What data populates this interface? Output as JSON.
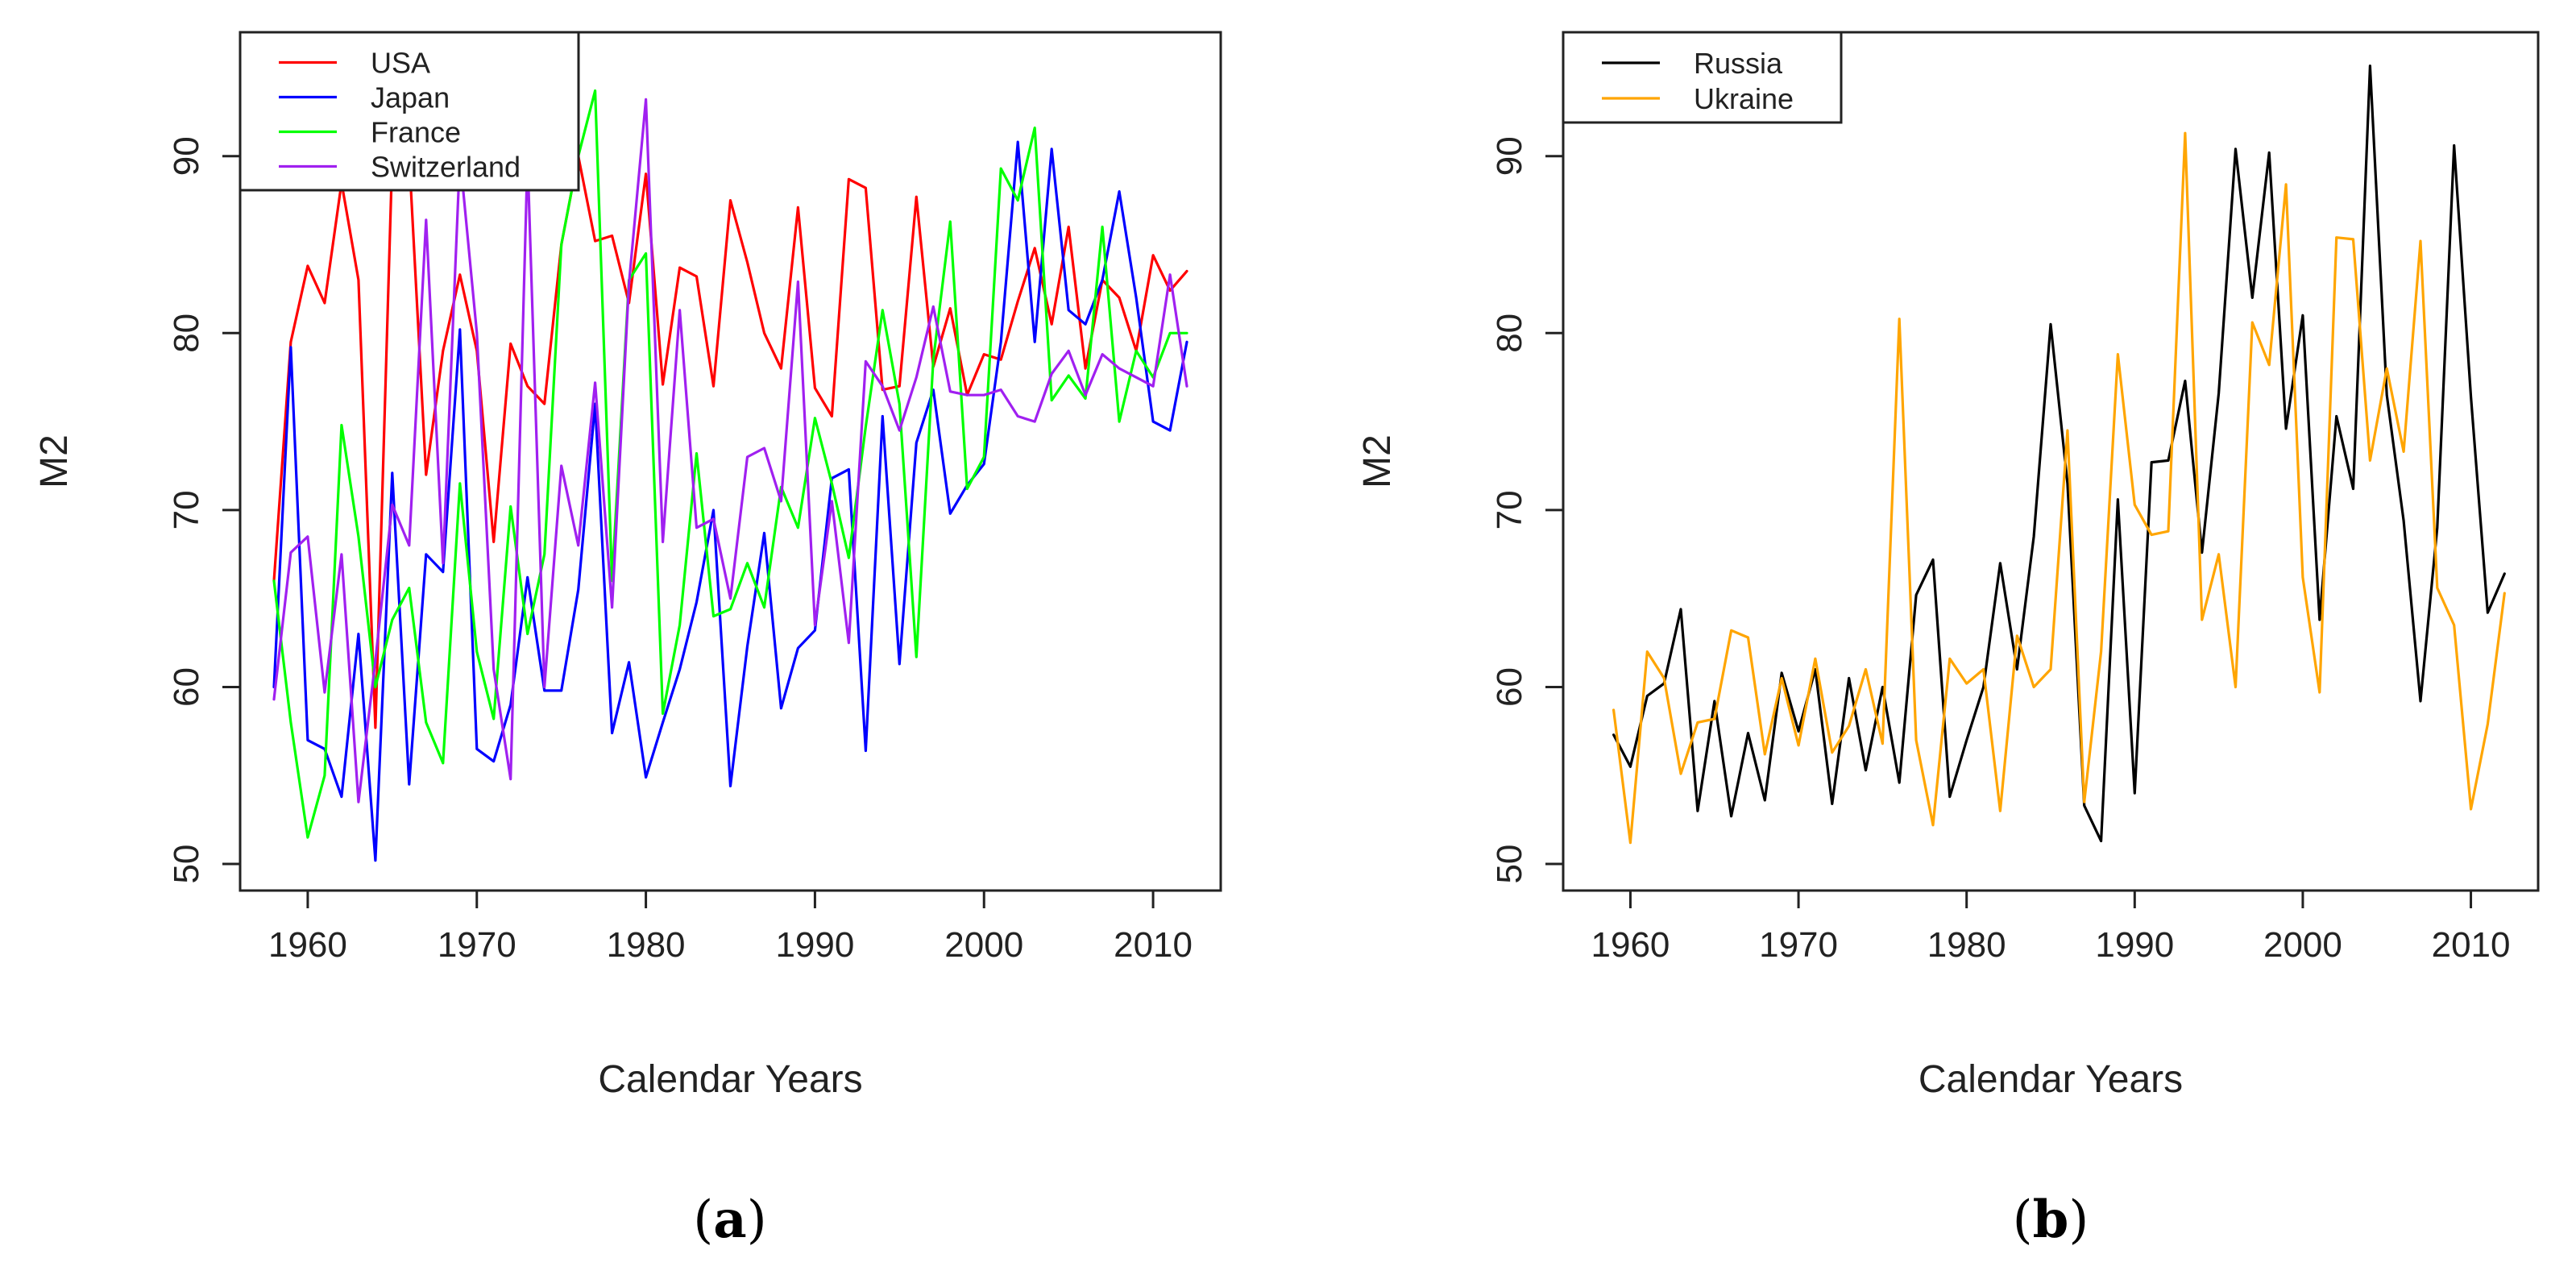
{
  "chart_data": [
    {
      "type": "line",
      "panel_label": "a",
      "xlabel": "Calendar Years",
      "ylabel": "M2",
      "xlim": [
        1956,
        2014
      ],
      "ylim": [
        48.5,
        97
      ],
      "xticks": [
        1960,
        1970,
        1980,
        1990,
        2000,
        2010
      ],
      "yticks": [
        50,
        60,
        70,
        80,
        90
      ],
      "legend_position": "top-left",
      "series": [
        {
          "name": "USA",
          "color": "#ff0000",
          "x": [
            1958,
            1959,
            1960,
            1961,
            1962,
            1963,
            1964,
            1965,
            1966,
            1967,
            1968,
            1969,
            1970,
            1971,
            1972,
            1973,
            1974,
            1975,
            1976,
            1977,
            1978,
            1979,
            1980,
            1981,
            1982,
            1983,
            1984,
            1985,
            1986,
            1987,
            1988,
            1989,
            1990,
            1991,
            1992,
            1993,
            1994,
            1995,
            1996,
            1997,
            1998,
            1999,
            2000,
            2001,
            2002,
            2003,
            2004,
            2005,
            2006,
            2007,
            2008,
            2009,
            2010,
            2011,
            2012
          ],
          "y": [
            66,
            79.5,
            83.8,
            81.7,
            88.5,
            83,
            57.7,
            90,
            90,
            72,
            79,
            83.3,
            79,
            68.2,
            79.4,
            77,
            76,
            85,
            90,
            85.2,
            85.5,
            81.7,
            89,
            77.1,
            83.7,
            83.2,
            77,
            87.5,
            84,
            80,
            78,
            87.1,
            76.9,
            75.3,
            88.7,
            88.2,
            76.8,
            77,
            87.7,
            78.1,
            81.4,
            76.5,
            78.8,
            78.5,
            81.8,
            84.8,
            80.5,
            86,
            78,
            83,
            82,
            79,
            84.4,
            82.4,
            83.5
          ]
        },
        {
          "name": "Japan",
          "color": "#0000ff",
          "x": [
            1958,
            1959,
            1960,
            1961,
            1962,
            1963,
            1964,
            1965,
            1966,
            1967,
            1968,
            1969,
            1970,
            1971,
            1972,
            1973,
            1974,
            1975,
            1976,
            1977,
            1978,
            1979,
            1980,
            1981,
            1982,
            1983,
            1984,
            1985,
            1986,
            1987,
            1988,
            1989,
            1990,
            1991,
            1992,
            1993,
            1994,
            1995,
            1996,
            1997,
            1998,
            1999,
            2000,
            2001,
            2002,
            2003,
            2004,
            2005,
            2006,
            2007,
            2008,
            2009,
            2010,
            2011,
            2012
          ],
          "y": [
            60,
            79.2,
            57,
            56.5,
            53.8,
            63,
            50.2,
            72.1,
            54.5,
            67.5,
            66.5,
            80.2,
            56.5,
            55.8,
            59,
            66.2,
            59.8,
            59.8,
            65.5,
            76,
            57.4,
            61.4,
            54.9,
            58,
            61,
            64.8,
            70,
            54.4,
            62.3,
            68.7,
            58.8,
            62.2,
            63.2,
            71.8,
            72.3,
            56.4,
            75.3,
            61.3,
            73.8,
            76.8,
            69.8,
            71.4,
            72.6,
            79.5,
            90.8,
            79.5,
            90.4,
            81.3,
            80.5,
            83,
            88,
            82,
            75,
            74.5,
            79.5
          ]
        },
        {
          "name": "France",
          "color": "#00ff00",
          "x": [
            1958,
            1959,
            1960,
            1961,
            1962,
            1963,
            1964,
            1965,
            1966,
            1967,
            1968,
            1969,
            1970,
            1971,
            1972,
            1973,
            1974,
            1975,
            1976,
            1977,
            1978,
            1979,
            1980,
            1981,
            1982,
            1983,
            1984,
            1985,
            1986,
            1987,
            1988,
            1989,
            1990,
            1991,
            1992,
            1993,
            1994,
            1995,
            1996,
            1997,
            1998,
            1999,
            2000,
            2001,
            2002,
            2003,
            2004,
            2005,
            2006,
            2007,
            2008,
            2009,
            2010,
            2011,
            2012
          ],
          "y": [
            66,
            58,
            51.5,
            55,
            74.8,
            68.5,
            60,
            63.8,
            65.6,
            58,
            55.7,
            71.5,
            62,
            58.2,
            70.2,
            63,
            67.5,
            85,
            90,
            93.7,
            66,
            83,
            84.5,
            58.5,
            63.5,
            73.2,
            64,
            64.4,
            67,
            64.5,
            71.3,
            69,
            75.2,
            71.5,
            67.3,
            74.7,
            81.3,
            76,
            61.7,
            78.5,
            86.3,
            71.2,
            73,
            89.3,
            87.5,
            91.6,
            76.2,
            77.6,
            76.3,
            86,
            75,
            79,
            77.5,
            80,
            80
          ]
        },
        {
          "name": "Switzerland",
          "color": "#a020f0",
          "x": [
            1958,
            1959,
            1960,
            1961,
            1962,
            1963,
            1964,
            1965,
            1966,
            1967,
            1968,
            1969,
            1970,
            1971,
            1972,
            1973,
            1974,
            1975,
            1976,
            1977,
            1978,
            1979,
            1980,
            1981,
            1982,
            1983,
            1984,
            1985,
            1986,
            1987,
            1988,
            1989,
            1990,
            1991,
            1992,
            1993,
            1994,
            1995,
            1996,
            1997,
            1998,
            1999,
            2000,
            2001,
            2002,
            2003,
            2004,
            2005,
            2006,
            2007,
            2008,
            2009,
            2010,
            2011,
            2012
          ],
          "y": [
            59.3,
            67.6,
            68.5,
            59.7,
            67.5,
            53.5,
            61.5,
            70.3,
            68,
            86.4,
            67,
            90,
            80,
            61,
            54.8,
            90,
            60,
            72.5,
            68,
            77.2,
            64.5,
            82.8,
            93.2,
            68.2,
            81.3,
            69,
            69.5,
            65,
            73,
            73.5,
            70.5,
            82.9,
            63.5,
            70.5,
            62.5,
            78.4,
            77,
            74.5,
            77.5,
            81.5,
            76.7,
            76.5,
            76.5,
            76.8,
            75.3,
            75,
            77.7,
            79,
            76.5,
            78.8,
            78,
            77.5,
            77,
            83.3,
            77
          ]
        }
      ]
    },
    {
      "type": "line",
      "panel_label": "b",
      "xlabel": "Calendar Years",
      "ylabel": "M2",
      "xlim": [
        1956,
        2014
      ],
      "ylim": [
        48.5,
        97
      ],
      "xticks": [
        1960,
        1970,
        1980,
        1990,
        2000,
        2010
      ],
      "yticks": [
        50,
        60,
        70,
        80,
        90
      ],
      "legend_position": "top-left",
      "series": [
        {
          "name": "Russia",
          "color": "#000000",
          "x": [
            1959,
            1960,
            1961,
            1962,
            1963,
            1964,
            1965,
            1966,
            1967,
            1968,
            1969,
            1970,
            1971,
            1972,
            1973,
            1974,
            1975,
            1976,
            1977,
            1978,
            1979,
            1980,
            1981,
            1982,
            1983,
            1984,
            1985,
            1986,
            1987,
            1988,
            1989,
            1990,
            1991,
            1992,
            1993,
            1994,
            1995,
            1996,
            1997,
            1998,
            1999,
            2000,
            2001,
            2002,
            2003,
            2004,
            2005,
            2006,
            2007,
            2008,
            2009,
            2010,
            2011,
            2012
          ],
          "y": [
            57.3,
            55.5,
            59.5,
            60.2,
            64.4,
            53,
            59.2,
            52.7,
            57.4,
            53.6,
            60.8,
            57.5,
            61,
            53.4,
            60.5,
            55.3,
            60,
            54.6,
            65.2,
            67.2,
            53.8,
            57,
            60,
            67,
            61,
            68.5,
            80.5,
            71.5,
            53.3,
            51.3,
            70.6,
            54,
            72.7,
            72.8,
            77.3,
            67.6,
            76.6,
            90.4,
            82,
            90.2,
            74.6,
            81,
            63.8,
            75.3,
            71.2,
            95.1,
            76.5,
            69.4,
            59.2,
            69,
            90.6,
            76.4,
            64.2,
            66.4
          ]
        },
        {
          "name": "Ukraine",
          "color": "#ffa500",
          "x": [
            1959,
            1960,
            1961,
            1962,
            1963,
            1964,
            1965,
            1966,
            1967,
            1968,
            1969,
            1970,
            1971,
            1972,
            1973,
            1974,
            1975,
            1976,
            1977,
            1978,
            1979,
            1980,
            1981,
            1982,
            1983,
            1984,
            1985,
            1986,
            1987,
            1988,
            1989,
            1990,
            1991,
            1992,
            1993,
            1994,
            1995,
            1996,
            1997,
            1998,
            1999,
            2000,
            2001,
            2002,
            2003,
            2004,
            2005,
            2006,
            2007,
            2008,
            2009,
            2010,
            2011,
            2012
          ],
          "y": [
            58.7,
            51.2,
            62,
            60.5,
            55.1,
            58,
            58.2,
            63.2,
            62.8,
            56.2,
            60.5,
            56.7,
            61.6,
            56.3,
            57.8,
            61,
            56.8,
            80.8,
            57,
            52.2,
            61.6,
            60.2,
            61,
            53,
            62.9,
            60,
            61,
            74.5,
            53.5,
            62,
            78.8,
            70.3,
            68.6,
            68.8,
            91.3,
            63.8,
            67.5,
            60,
            80.6,
            78.2,
            88.4,
            66.2,
            59.7,
            85.4,
            85.3,
            72.8,
            78,
            73.3,
            85.2,
            65.6,
            63.5,
            53.1,
            57.9,
            65.3
          ]
        }
      ]
    }
  ]
}
